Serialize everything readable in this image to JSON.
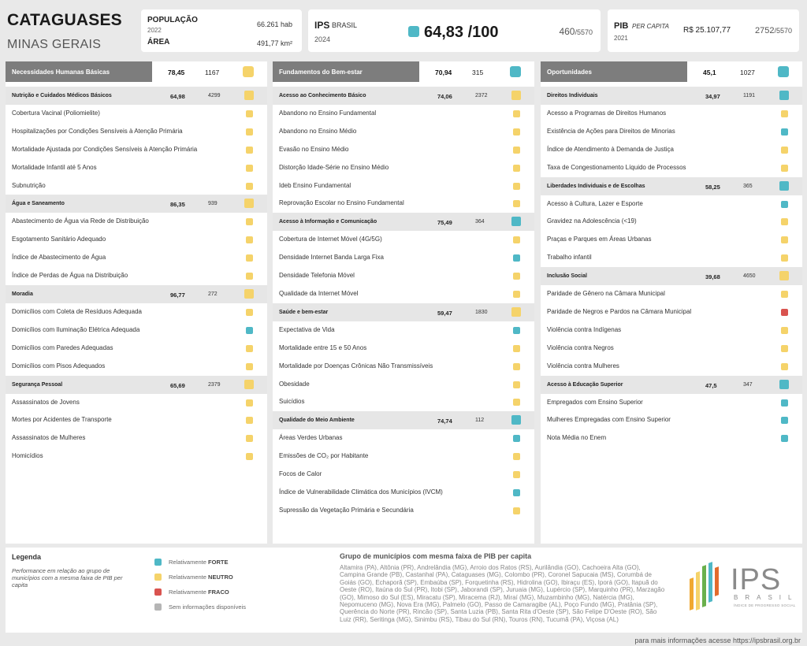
{
  "header": {
    "city": "CATAGUASES",
    "state": "MINAS GERAIS",
    "population": {
      "label": "POPULAÇÃO",
      "year": "2022",
      "value": "66.261 hab"
    },
    "area": {
      "label": "ÁREA",
      "value": "491,77 km²"
    },
    "ips": {
      "label": "IPS",
      "sublabel": "BRASIL",
      "year": "2024",
      "score": "64,83",
      "max": "/100",
      "rank": "460",
      "total": "/5570",
      "color": "#4fb8c6"
    },
    "pib": {
      "label": "PIB",
      "sublabel": "PER CAPITA",
      "year": "2021",
      "value": "R$ 25.107,77",
      "rank": "2752",
      "total": "/5570"
    }
  },
  "colors": {
    "forte": "#4fb8c6",
    "neutro": "#f5d36a",
    "fraco": "#d9534f",
    "sem_info": "#b5b5b5"
  },
  "columns": [
    {
      "title": "Necessidades Humanas Básicas",
      "score": "78,45",
      "rank": "1167",
      "status": "neutro",
      "components": [
        {
          "title": "Nutrição e Cuidados Médicos Básicos",
          "score": "64,98",
          "rank": "4299",
          "status": "neutro",
          "indicators": [
            {
              "label": "Cobertura Vacinal (Poliomielite)",
              "status": "neutro"
            },
            {
              "label": "Hospitalizações por Condições Sensíveis à Atenção Primária",
              "status": "neutro"
            },
            {
              "label": "Mortalidade Ajustada por Condições Sensíveis à Atenção Primária",
              "status": "neutro"
            },
            {
              "label": "Mortalidade Infantil até 5 Anos",
              "status": "neutro"
            },
            {
              "label": "Subnutrição",
              "status": "neutro"
            }
          ]
        },
        {
          "title": "Água e Saneamento",
          "score": "86,35",
          "rank": "939",
          "status": "neutro",
          "indicators": [
            {
              "label": "Abastecimento de Água via Rede de Distribuição",
              "status": "neutro"
            },
            {
              "label": "Esgotamento Sanitário Adequado",
              "status": "neutro"
            },
            {
              "label": "Índice de Abastecimento de Água",
              "status": "neutro"
            },
            {
              "label": "Índice de Perdas de Água na Distribuição",
              "status": "neutro"
            }
          ]
        },
        {
          "title": "Moradia",
          "score": "96,77",
          "rank": "272",
          "status": "neutro",
          "indicators": [
            {
              "label": "Domicílios com Coleta de Resíduos Adequada",
              "status": "neutro"
            },
            {
              "label": "Domicílios com Iluminação Elétrica Adequada",
              "status": "forte"
            },
            {
              "label": "Domicílios com Paredes Adequadas",
              "status": "neutro"
            },
            {
              "label": "Domicílios com Pisos Adequados",
              "status": "neutro"
            }
          ]
        },
        {
          "title": "Segurança Pessoal",
          "score": "65,69",
          "rank": "2379",
          "status": "neutro",
          "indicators": [
            {
              "label": "Assassinatos de Jovens",
              "status": "neutro"
            },
            {
              "label": "Mortes por Acidentes de Transporte",
              "status": "neutro"
            },
            {
              "label": "Assassinatos de Mulheres",
              "status": "neutro"
            },
            {
              "label": "Homicídios",
              "status": "neutro"
            }
          ]
        }
      ]
    },
    {
      "title": "Fundamentos do Bem-estar",
      "score": "70,94",
      "rank": "315",
      "status": "forte",
      "components": [
        {
          "title": "Acesso ao Conhecimento Básico",
          "score": "74,06",
          "rank": "2372",
          "status": "neutro",
          "indicators": [
            {
              "label": "Abandono no Ensino Fundamental",
              "status": "neutro"
            },
            {
              "label": "Abandono no Ensino Médio",
              "status": "neutro"
            },
            {
              "label": "Evasão no Ensino Médio",
              "status": "neutro"
            },
            {
              "label": "Distorção Idade-Série no Ensino Médio",
              "status": "neutro"
            },
            {
              "label": "Ideb Ensino Fundamental",
              "status": "neutro"
            },
            {
              "label": "Reprovação Escolar no Ensino Fundamental",
              "status": "neutro"
            }
          ]
        },
        {
          "title": "Acesso à Informação e Comunicação",
          "score": "75,49",
          "rank": "364",
          "status": "forte",
          "indicators": [
            {
              "label": "Cobertura de Internet Móvel (4G/5G)",
              "status": "neutro"
            },
            {
              "label": "Densidade Internet Banda Larga Fixa",
              "status": "forte"
            },
            {
              "label": "Densidade Telefonia Móvel",
              "status": "neutro"
            },
            {
              "label": "Qualidade da Internet Móvel",
              "status": "neutro"
            }
          ]
        },
        {
          "title": "Saúde e bem-estar",
          "score": "59,47",
          "rank": "1830",
          "status": "neutro",
          "indicators": [
            {
              "label": "Expectativa de Vida",
              "status": "forte"
            },
            {
              "label": "Mortalidade entre 15 e 50 Anos",
              "status": "neutro"
            },
            {
              "label": "Mortalidade por Doenças Crônicas Não Transmissíveis",
              "status": "neutro"
            },
            {
              "label": "Obesidade",
              "status": "neutro"
            },
            {
              "label": "Suicídios",
              "status": "neutro"
            }
          ]
        },
        {
          "title": "Qualidade do Meio Ambiente",
          "score": "74,74",
          "rank": "112",
          "status": "forte",
          "indicators": [
            {
              "label": "Áreas Verdes Urbanas",
              "status": "forte"
            },
            {
              "label": "Emissões de CO₂ por Habitante",
              "status": "neutro"
            },
            {
              "label": "Focos de Calor",
              "status": "neutro"
            },
            {
              "label": "Índice de Vulnerabilidade Climática dos Municípios (IVCM)",
              "status": "forte"
            },
            {
              "label": "Supressão da Vegetação Primária e Secundária",
              "status": "neutro"
            }
          ]
        }
      ]
    },
    {
      "title": "Oportunidades",
      "score": "45,1",
      "rank": "1027",
      "status": "forte",
      "components": [
        {
          "title": "Direitos Individuais",
          "score": "34,97",
          "rank": "1191",
          "status": "forte",
          "indicators": [
            {
              "label": "Acesso a Programas de Direitos Humanos",
              "status": "neutro"
            },
            {
              "label": "Existência de Ações para Direitos de Minorias",
              "status": "forte"
            },
            {
              "label": "Índice de Atendimento à Demanda de Justiça",
              "status": "neutro"
            },
            {
              "label": "Taxa de Congestionamento Líquido de Processos",
              "status": "neutro"
            }
          ]
        },
        {
          "title": "Liberdades Individuais e de Escolhas",
          "score": "58,25",
          "rank": "365",
          "status": "forte",
          "indicators": [
            {
              "label": "Acesso à Cultura, Lazer e Esporte",
              "status": "forte"
            },
            {
              "label": "Gravidez na Adolescência (<19)",
              "status": "neutro"
            },
            {
              "label": "Praças e Parques em Áreas Urbanas",
              "status": "neutro"
            },
            {
              "label": "Trabalho infantil",
              "status": "neutro"
            }
          ]
        },
        {
          "title": "Inclusão Social",
          "score": "39,68",
          "rank": "4650",
          "status": "neutro",
          "indicators": [
            {
              "label": "Paridade de Gênero na Câmara Municipal",
              "status": "neutro"
            },
            {
              "label": "Paridade de Negros e Pardos na Câmara Municipal",
              "status": "fraco"
            },
            {
              "label": "Violência contra Indígenas",
              "status": "neutro"
            },
            {
              "label": "Violência contra Negros",
              "status": "neutro"
            },
            {
              "label": "Violência contra Mulheres",
              "status": "neutro"
            }
          ]
        },
        {
          "title": "Acesso à Educação Superior",
          "score": "47,5",
          "rank": "347",
          "status": "forte",
          "indicators": [
            {
              "label": "Empregados com Ensino Superior",
              "status": "forte"
            },
            {
              "label": "Mulheres Empregadas com Ensino Superior",
              "status": "forte"
            },
            {
              "label": "Nota Média no Enem",
              "status": "forte"
            }
          ]
        }
      ]
    }
  ],
  "legend": {
    "title": "Legenda",
    "note": "Performance em relação ao grupo de municípios com a mesma faixa de PIB per capita",
    "items": [
      {
        "prefix": "Relativamente ",
        "bold": "FORTE",
        "status": "forte"
      },
      {
        "prefix": "Relativamente ",
        "bold": "NEUTRO",
        "status": "neutro"
      },
      {
        "prefix": "Relativamente ",
        "bold": "FRACO",
        "status": "fraco"
      },
      {
        "prefix": "Sem informações disponíveis",
        "bold": "",
        "status": "sem_info"
      }
    ]
  },
  "group": {
    "title": "Grupo de municípios com mesma faixa de PIB per capita",
    "text": "Altamira (PA), Altônia (PR), Andrelândia (MG), Arroio dos Ratos (RS), Aurilândia (GO), Cachoeira Alta (GO), Campina Grande (PB), Castanhal (PA), Cataguases (MG), Colombo (PR), Coronel Sapucaia (MS), Corumbá de Goiás (GO), Echaporã (SP), Embaúba (SP), Forquetinha (RS), Hidrolina (GO), Ibiraçu (ES), Iporá (GO), Itapuã do Oeste (RO), Itaúna do Sul (PR), Itobi (SP), Jaborandi (SP), Juruaia (MG), Lupércio (SP), Marquinho (PR), Marzagão (GO), Mimoso do Sul (ES), Miracatu (SP), Miracema (RJ), Miraí (MG), Muzambinho (MG), Natércia (MG), Nepomuceno (MG), Nova Era (MG), Palmelo (GO), Passo de Camaragibe (AL), Poço Fundo (MG), Pratânia (SP), Querência do Norte (PR), Rincão (SP), Santa Luzia (PB), Santa Rita d'Oeste (SP), São Felipe D'Oeste (RO), São Luiz (RR), Seritinga (MG), Sinimbu (RS), Tibau do Sul (RN), Touros (RN), Tucumã (PA), Viçosa (AL)"
  },
  "logo": {
    "name": "IPS",
    "country": "BRASIL",
    "tagline": "ÍNDICE DE PROGRESSO SOCIAL"
  },
  "more_info": "para mais informações acesse https://ipsbrasil.org.br"
}
